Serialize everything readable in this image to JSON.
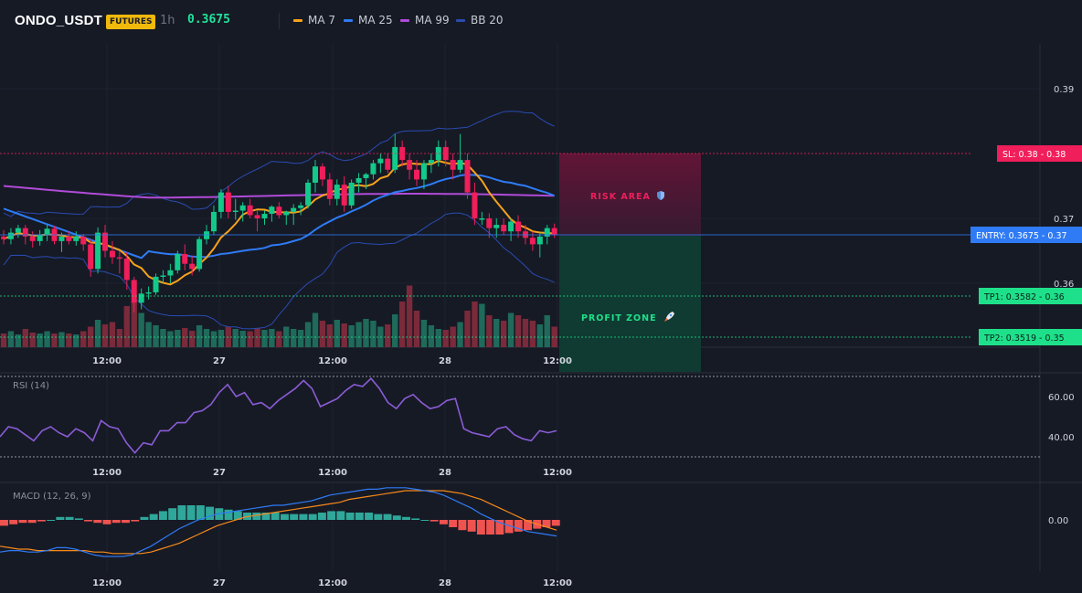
{
  "header": {
    "symbol": "ONDO_USDT",
    "badge": "FUTURES",
    "timeframe": "1h",
    "last_price": "0.3675",
    "legend": [
      {
        "label": "MA 7",
        "color": "#f7a21b"
      },
      {
        "label": "MA 25",
        "color": "#2f7bf5"
      },
      {
        "label": "MA 99",
        "color": "#b04bd8"
      },
      {
        "label": "BB 20",
        "color": "#2a4bb0"
      }
    ]
  },
  "price_axis": {
    "ticks": [
      "0.39",
      "0.37",
      "0.36"
    ],
    "tick_values": [
      0.39,
      0.37,
      0.36
    ]
  },
  "time_axis": {
    "ticks": [
      "12:00",
      "27",
      "12:00",
      "28",
      "12:00"
    ]
  },
  "levels": {
    "sl": {
      "label": "SL: 0.38",
      "value_label": "0.38",
      "value": 0.38,
      "color": "#f01e5a"
    },
    "entry": {
      "label": "ENTRY: 0.3675",
      "value_label": "0.37",
      "value": 0.3675,
      "color": "#2f7bf5"
    },
    "tp1": {
      "label": "TP1: 0.3582",
      "value_label": "0.36",
      "value": 0.3582,
      "color": "#1fe08a"
    },
    "tp2": {
      "label": "TP2: 0.3519",
      "value_label": "0.35",
      "value": 0.3519,
      "color": "#1fe08a"
    }
  },
  "zones": {
    "risk_label": "RISK AREA",
    "profit_label": "PROFIT ZONE"
  },
  "colors": {
    "up": "#13c98a",
    "down": "#f01e5a",
    "bg": "#161a25",
    "grid": "#1f2330",
    "rsi": "#8b5cd6",
    "macd": "#2f7bf5",
    "signal": "#f7891b",
    "hist_up": "#2fa79a",
    "hist_down": "#ef5350"
  },
  "rsi": {
    "title": "RSI (14)",
    "ticks": [
      "60.00",
      "40.00"
    ],
    "tick_values": [
      60,
      40
    ],
    "upper": 70,
    "lower": 30
  },
  "macd": {
    "title": "MACD (12, 26, 9)",
    "ticks": [
      "0.00"
    ],
    "tick_values": [
      0
    ]
  },
  "chart_data": {
    "type": "candlestick",
    "timeframe": "1h",
    "candles": [
      [
        0.3672,
        0.3682,
        0.366,
        0.3668
      ],
      [
        0.3668,
        0.3685,
        0.366,
        0.3678
      ],
      [
        0.3678,
        0.369,
        0.367,
        0.3685
      ],
      [
        0.3685,
        0.369,
        0.366,
        0.3672
      ],
      [
        0.3672,
        0.368,
        0.3655,
        0.3665
      ],
      [
        0.3665,
        0.3682,
        0.3658,
        0.3675
      ],
      [
        0.3675,
        0.369,
        0.3665,
        0.3684
      ],
      [
        0.3684,
        0.3688,
        0.366,
        0.3665
      ],
      [
        0.3665,
        0.3678,
        0.3648,
        0.3672
      ],
      [
        0.3672,
        0.368,
        0.366,
        0.3665
      ],
      [
        0.3665,
        0.368,
        0.3658,
        0.3672
      ],
      [
        0.3672,
        0.3676,
        0.365,
        0.366
      ],
      [
        0.366,
        0.3668,
        0.361,
        0.3622
      ],
      [
        0.3622,
        0.3686,
        0.3615,
        0.3678
      ],
      [
        0.3678,
        0.369,
        0.364,
        0.365
      ],
      [
        0.365,
        0.3665,
        0.363,
        0.364
      ],
      [
        0.364,
        0.365,
        0.3615,
        0.3638
      ],
      [
        0.3638,
        0.3648,
        0.359,
        0.3605
      ],
      [
        0.3605,
        0.361,
        0.3555,
        0.357
      ],
      [
        0.357,
        0.3592,
        0.356,
        0.3584
      ],
      [
        0.3584,
        0.3595,
        0.3575,
        0.3586
      ],
      [
        0.3586,
        0.3615,
        0.3582,
        0.361
      ],
      [
        0.361,
        0.362,
        0.36,
        0.3612
      ],
      [
        0.3612,
        0.363,
        0.36,
        0.362
      ],
      [
        0.362,
        0.365,
        0.3615,
        0.3645
      ],
      [
        0.3645,
        0.366,
        0.362,
        0.363
      ],
      [
        0.363,
        0.3642,
        0.3612,
        0.3622
      ],
      [
        0.3622,
        0.3672,
        0.3618,
        0.3668
      ],
      [
        0.3668,
        0.369,
        0.366,
        0.368
      ],
      [
        0.368,
        0.372,
        0.3675,
        0.371
      ],
      [
        0.371,
        0.3745,
        0.37,
        0.374
      ],
      [
        0.374,
        0.375,
        0.37,
        0.371
      ],
      [
        0.371,
        0.373,
        0.3698,
        0.3712
      ],
      [
        0.3712,
        0.3725,
        0.3695,
        0.372
      ],
      [
        0.372,
        0.373,
        0.37,
        0.3705
      ],
      [
        0.3705,
        0.3712,
        0.368,
        0.37
      ],
      [
        0.37,
        0.3712,
        0.369,
        0.3707
      ],
      [
        0.3707,
        0.372,
        0.3695,
        0.3718
      ],
      [
        0.3718,
        0.3725,
        0.37,
        0.3705
      ],
      [
        0.3705,
        0.3712,
        0.369,
        0.371
      ],
      [
        0.371,
        0.3722,
        0.369,
        0.3716
      ],
      [
        0.3716,
        0.3725,
        0.3705,
        0.372
      ],
      [
        0.372,
        0.376,
        0.3715,
        0.3755
      ],
      [
        0.3755,
        0.379,
        0.374,
        0.378
      ],
      [
        0.378,
        0.3785,
        0.375,
        0.376
      ],
      [
        0.376,
        0.377,
        0.372,
        0.373
      ],
      [
        0.373,
        0.376,
        0.372,
        0.3752
      ],
      [
        0.3752,
        0.3765,
        0.371,
        0.372
      ],
      [
        0.372,
        0.376,
        0.3715,
        0.3755
      ],
      [
        0.3755,
        0.377,
        0.374,
        0.3762
      ],
      [
        0.3762,
        0.377,
        0.3745,
        0.3768
      ],
      [
        0.3768,
        0.379,
        0.376,
        0.3785
      ],
      [
        0.3785,
        0.38,
        0.377,
        0.3792
      ],
      [
        0.3792,
        0.38,
        0.377,
        0.3775
      ],
      [
        0.3775,
        0.383,
        0.377,
        0.381
      ],
      [
        0.381,
        0.382,
        0.378,
        0.379
      ],
      [
        0.379,
        0.38,
        0.376,
        0.3775
      ],
      [
        0.3775,
        0.379,
        0.375,
        0.376
      ],
      [
        0.376,
        0.379,
        0.3745,
        0.3785
      ],
      [
        0.3785,
        0.38,
        0.377,
        0.379
      ],
      [
        0.379,
        0.382,
        0.378,
        0.381
      ],
      [
        0.381,
        0.382,
        0.378,
        0.379
      ],
      [
        0.379,
        0.38,
        0.376,
        0.3775
      ],
      [
        0.3775,
        0.383,
        0.377,
        0.379
      ],
      [
        0.379,
        0.38,
        0.373,
        0.374
      ],
      [
        0.374,
        0.3755,
        0.369,
        0.37
      ],
      [
        0.37,
        0.371,
        0.369,
        0.37
      ],
      [
        0.37,
        0.3708,
        0.367,
        0.3685
      ],
      [
        0.3685,
        0.37,
        0.367,
        0.369
      ],
      [
        0.369,
        0.37,
        0.3675,
        0.368
      ],
      [
        0.368,
        0.37,
        0.3665,
        0.3695
      ],
      [
        0.3695,
        0.3705,
        0.367,
        0.368
      ],
      [
        0.368,
        0.369,
        0.366,
        0.367
      ],
      [
        0.367,
        0.368,
        0.365,
        0.366
      ],
      [
        0.366,
        0.3678,
        0.364,
        0.3672
      ],
      [
        0.3672,
        0.369,
        0.366,
        0.3685
      ],
      [
        0.3685,
        0.3692,
        0.367,
        0.3675
      ]
    ],
    "volume": [
      0.3,
      0.35,
      0.28,
      0.4,
      0.32,
      0.3,
      0.35,
      0.3,
      0.33,
      0.3,
      0.28,
      0.35,
      0.45,
      0.6,
      0.5,
      0.55,
      0.4,
      0.9,
      1.0,
      0.75,
      0.55,
      0.48,
      0.4,
      0.35,
      0.38,
      0.42,
      0.36,
      0.48,
      0.4,
      0.35,
      0.38,
      0.45,
      0.4,
      0.36,
      0.35,
      0.42,
      0.38,
      0.4,
      0.35,
      0.45,
      0.4,
      0.38,
      0.55,
      0.75,
      0.58,
      0.5,
      0.6,
      0.52,
      0.48,
      0.55,
      0.62,
      0.58,
      0.45,
      0.5,
      0.72,
      1.0,
      1.35,
      0.8,
      0.6,
      0.48,
      0.4,
      0.38,
      0.45,
      0.55,
      0.8,
      1.0,
      0.95,
      0.7,
      0.62,
      0.58,
      0.75,
      0.7,
      0.62,
      0.58,
      0.5,
      0.7,
      0.45
    ],
    "rsi": [
      40,
      45,
      44,
      41,
      38,
      43,
      45,
      42,
      40,
      44,
      42,
      38,
      48,
      45,
      44,
      37,
      32,
      37,
      36,
      43,
      43,
      47,
      47,
      52,
      53,
      56,
      62,
      66,
      60,
      62,
      56,
      57,
      54,
      58,
      61,
      64,
      68,
      64,
      55,
      57,
      59,
      63,
      66,
      65,
      69,
      64,
      57,
      54,
      59,
      61,
      57,
      54,
      55,
      58,
      59,
      44,
      42,
      41,
      40,
      44,
      45,
      41,
      39,
      38,
      43,
      42,
      43
    ],
    "macd": [
      -0.0022,
      -0.0021,
      -0.0021,
      -0.0022,
      -0.0022,
      -0.0021,
      -0.0019,
      -0.0019,
      -0.002,
      -0.0022,
      -0.0024,
      -0.0025,
      -0.0025,
      -0.0025,
      -0.0024,
      -0.0021,
      -0.0018,
      -0.0014,
      -0.001,
      -0.0006,
      -0.0003,
      0.0,
      0.0002,
      0.0004,
      0.0005,
      0.0006,
      0.0007,
      0.0008,
      0.0009,
      0.001,
      0.001,
      0.0011,
      0.0012,
      0.0013,
      0.0015,
      0.0017,
      0.0018,
      0.0019,
      0.002,
      0.0021,
      0.0021,
      0.0022,
      0.0022,
      0.0022,
      0.0021,
      0.002,
      0.0019,
      0.0017,
      0.0014,
      0.0011,
      0.0008,
      0.0004,
      0.0001,
      -0.0002,
      -0.0004,
      -0.0006,
      -0.0008,
      -0.0009,
      -0.001,
      -0.0011
    ],
    "signal": [
      -0.0018,
      -0.0019,
      -0.002,
      -0.002,
      -0.0021,
      -0.0021,
      -0.0021,
      -0.0021,
      -0.0021,
      -0.0021,
      -0.0022,
      -0.0022,
      -0.0023,
      -0.0023,
      -0.0023,
      -0.0023,
      -0.0022,
      -0.002,
      -0.0018,
      -0.0016,
      -0.0013,
      -0.001,
      -0.0007,
      -0.0004,
      -0.0002,
      0.0,
      0.0002,
      0.0003,
      0.0004,
      0.0005,
      0.0006,
      0.0007,
      0.0008,
      0.0009,
      0.001,
      0.0011,
      0.0012,
      0.0014,
      0.0015,
      0.0016,
      0.0017,
      0.0018,
      0.0019,
      0.002,
      0.002,
      0.002,
      0.002,
      0.002,
      0.0019,
      0.0018,
      0.0016,
      0.0014,
      0.0011,
      0.0008,
      0.0005,
      0.0002,
      -0.0001,
      -0.0003,
      -0.0005,
      -0.0007
    ],
    "hist": [
      -0.0004,
      -0.0003,
      -0.0002,
      -0.0002,
      -0.0001,
      0.0,
      0.0002,
      0.0002,
      0.0001,
      -0.0001,
      -0.0002,
      -0.0003,
      -0.0002,
      -0.0002,
      -0.0001,
      0.0002,
      0.0004,
      0.0006,
      0.0008,
      0.001,
      0.001,
      0.001,
      0.0009,
      0.0008,
      0.0007,
      0.0006,
      0.0005,
      0.0005,
      0.0005,
      0.0005,
      0.0004,
      0.0004,
      0.0004,
      0.0004,
      0.0005,
      0.0006,
      0.0006,
      0.0005,
      0.0005,
      0.0005,
      0.0004,
      0.0004,
      0.0003,
      0.0002,
      0.0001,
      0.0,
      -0.0001,
      -0.0003,
      -0.0005,
      -0.0007,
      -0.0008,
      -0.001,
      -0.001,
      -0.001,
      -0.0009,
      -0.0008,
      -0.0007,
      -0.0006,
      -0.0005,
      -0.0004
    ]
  }
}
